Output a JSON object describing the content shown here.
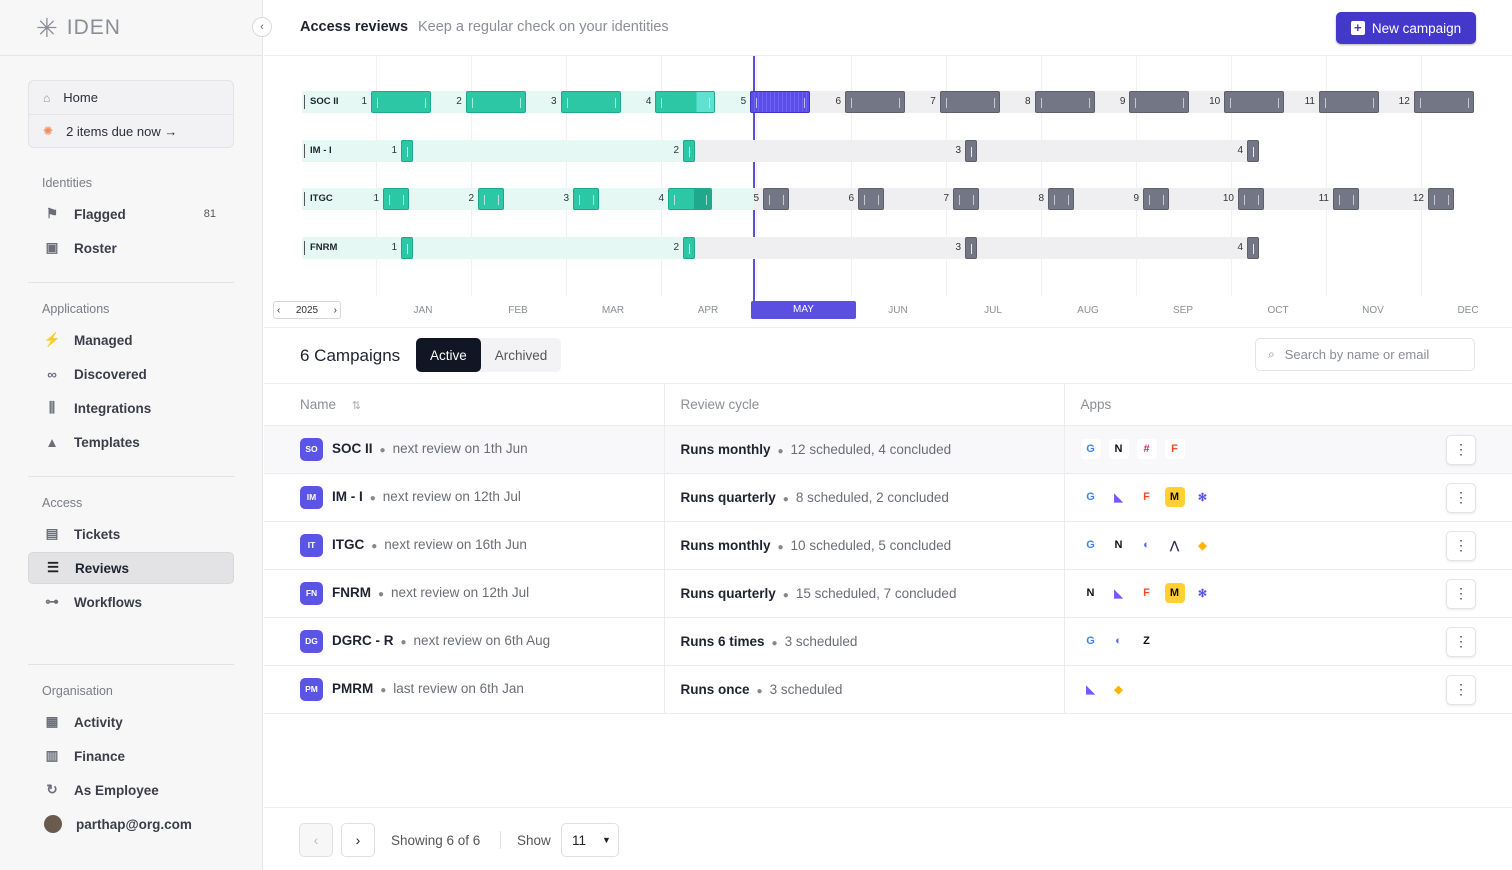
{
  "app": {
    "name": "IDEN"
  },
  "sidebar": {
    "home_label": "Home",
    "due_label": "2 items due now →",
    "sections": {
      "identities": "Identities",
      "applications": "Applications",
      "access": "Access",
      "organisation": "Organisation"
    },
    "items": {
      "flagged": {
        "label": "Flagged",
        "count": "81"
      },
      "roster": {
        "label": "Roster"
      },
      "managed": {
        "label": "Managed"
      },
      "discovered": {
        "label": "Discovered"
      },
      "integrations": {
        "label": "Integrations"
      },
      "templates": {
        "label": "Templates"
      },
      "tickets": {
        "label": "Tickets"
      },
      "reviews": {
        "label": "Reviews"
      },
      "workflows": {
        "label": "Workflows"
      },
      "activity": {
        "label": "Activity"
      },
      "finance": {
        "label": "Finance"
      },
      "as_employee": {
        "label": "As Employee"
      },
      "user": {
        "label": "parthap@org.com"
      }
    }
  },
  "header": {
    "title": "Access reviews",
    "subtitle": "Keep a regular check on your identities",
    "new_button": "New campaign"
  },
  "timeline": {
    "year": "2025",
    "months": [
      "JAN",
      "FEB",
      "MAR",
      "APR",
      "MAY",
      "JUN",
      "JUL",
      "AUG",
      "SEP",
      "OCT",
      "NOV",
      "DEC"
    ],
    "current_month": "MAY",
    "tracks": [
      {
        "label": "SOC II",
        "cycles": [
          "1",
          "2",
          "3",
          "4",
          "5",
          "6",
          "7",
          "8",
          "9",
          "10",
          "11",
          "12"
        ]
      },
      {
        "label": "IM - I",
        "cycles": [
          "1",
          "2",
          "3",
          "4"
        ]
      },
      {
        "label": "ITGC",
        "cycles": [
          "1",
          "2",
          "3",
          "4",
          "5",
          "6",
          "7",
          "8",
          "9",
          "10",
          "11",
          "12"
        ]
      },
      {
        "label": "FNRM",
        "cycles": [
          "1",
          "2",
          "3",
          "4"
        ]
      }
    ]
  },
  "campaigns": {
    "title": "6 Campaigns",
    "tab_active": "Active",
    "tab_archived": "Archived",
    "search_placeholder": "Search by name or email",
    "columns": {
      "name": "Name",
      "cycle": "Review cycle",
      "apps": "Apps"
    },
    "rows": [
      {
        "abbr": "SO",
        "name": "SOC II",
        "next": "next review on 1th Jun",
        "runs": "Runs monthly",
        "counts": "12 scheduled, 4 concluded",
        "apps": [
          "google",
          "notion",
          "slack",
          "figma"
        ]
      },
      {
        "abbr": "IM",
        "name": "IM - I",
        "next": "next review on 12th Jul",
        "runs": "Runs quarterly",
        "counts": "8 scheduled, 2 concluded",
        "apps": [
          "google",
          "mixpanel",
          "figma",
          "miro",
          "zendesk-star"
        ]
      },
      {
        "abbr": "IT",
        "name": "ITGC",
        "next": "next review on 16th Jun",
        "runs": "Runs monthly",
        "counts": "10 scheduled, 5 concluded",
        "apps": [
          "google",
          "notion",
          "linear",
          "sentry",
          "airtable"
        ]
      },
      {
        "abbr": "FN",
        "name": "FNRM",
        "next": "next review on 12th Jul",
        "runs": "Runs quarterly",
        "counts": "15 scheduled, 7 concluded",
        "apps": [
          "notion",
          "mixpanel",
          "figma",
          "miro",
          "zendesk-star"
        ]
      },
      {
        "abbr": "DG",
        "name": "DGRC - R",
        "next": "next review on 6th Aug",
        "runs": "Runs 6 times",
        "counts": "3 scheduled",
        "apps": [
          "google",
          "linear",
          "zapier"
        ]
      },
      {
        "abbr": "PM",
        "name": "PMRM",
        "next": "last review on 6th Jan",
        "runs": "Runs once",
        "counts": "3 scheduled",
        "apps": [
          "mixpanel",
          "airtable"
        ]
      }
    ]
  },
  "footer": {
    "showing": "Showing 6 of 6",
    "show_label": "Show",
    "page_size": "11"
  },
  "colors": {
    "accent": "#4338ca",
    "done": "#2cc7a5",
    "pending": "#737684",
    "current": "#5b4ee8"
  }
}
